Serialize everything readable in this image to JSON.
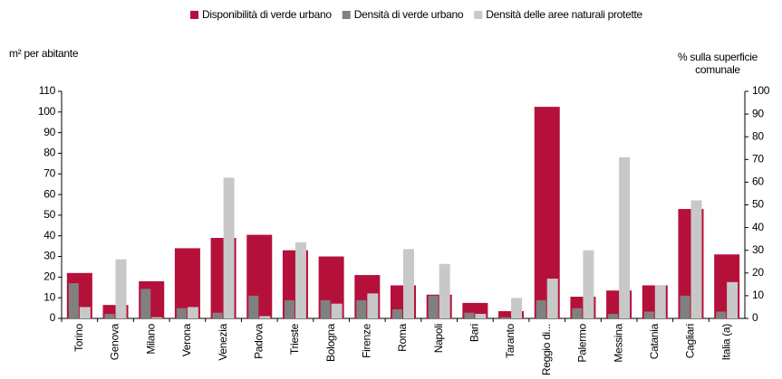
{
  "chart_data": {
    "type": "bar",
    "categories": [
      "Torino",
      "Genova",
      "Milano",
      "Verona",
      "Venezia",
      "Padova",
      "Trieste",
      "Bologna",
      "Firenze",
      "Roma",
      "Napoli",
      "Bari",
      "Taranto",
      "Reggio di...",
      "Palermo",
      "Messina",
      "Catania",
      "Cagliari",
      "Italia (a)"
    ],
    "series": [
      {
        "name": "Disponibilità di verde urbano",
        "color": "#b5103a",
        "axis": "y",
        "values": [
          22,
          6.5,
          18,
          34,
          39,
          40.5,
          33,
          30,
          21,
          16,
          11.5,
          7.5,
          3.5,
          102.5,
          10.5,
          13.5,
          16,
          53,
          31
        ]
      },
      {
        "name": "Densità di verde urbano",
        "color": "#808080",
        "axis": "y2",
        "values": [
          15.5,
          2,
          13,
          4.5,
          2.5,
          10,
          8,
          8,
          8,
          4,
          10,
          2.5,
          0.5,
          8,
          4.5,
          2,
          3,
          10,
          3
        ]
      },
      {
        "name": "Densità delle aree naturali protette",
        "color": "#c8c8c8",
        "axis": "y2",
        "values": [
          5,
          26,
          0.5,
          5,
          62,
          1,
          33.5,
          6.5,
          11,
          30.5,
          24,
          2,
          9,
          17.5,
          30,
          71,
          14.5,
          52,
          16
        ]
      }
    ],
    "y_label": "m² per abitante",
    "y2_label": [
      "% sulla superficie",
      "comunale"
    ],
    "ylim": [
      0,
      110
    ],
    "yticks": [
      0,
      10,
      20,
      30,
      40,
      50,
      60,
      70,
      80,
      90,
      100,
      110
    ],
    "y2lim": [
      0,
      100
    ],
    "y2ticks": [
      0,
      10,
      20,
      30,
      40,
      50,
      60,
      70,
      80,
      90,
      100
    ],
    "legend": "top"
  }
}
